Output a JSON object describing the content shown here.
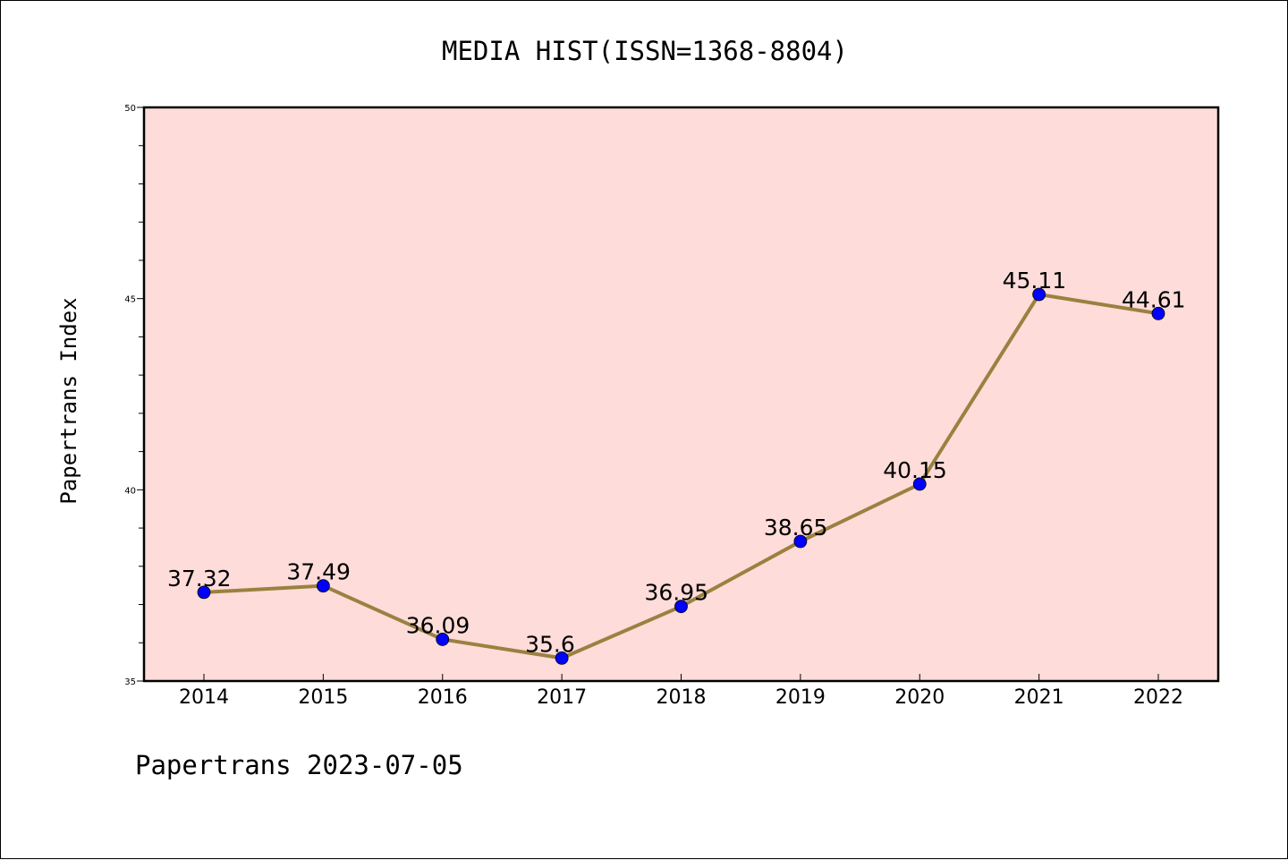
{
  "chart_data": {
    "type": "line",
    "title": "MEDIA HIST(ISSN=1368-8804)",
    "ylabel": "Papertrans Index",
    "xlabel": "",
    "categories": [
      "2014",
      "2015",
      "2016",
      "2017",
      "2018",
      "2019",
      "2020",
      "2021",
      "2022"
    ],
    "values": [
      37.32,
      37.49,
      36.09,
      35.6,
      36.95,
      38.65,
      40.15,
      45.11,
      44.61
    ],
    "data_labels": [
      "37.32",
      "37.49",
      "36.09",
      "35.6",
      "36.95",
      "38.65",
      "40.15",
      "45.11",
      "44.61"
    ],
    "ylim": [
      35,
      50
    ],
    "yticks": [
      "35",
      "40",
      "45",
      "50"
    ],
    "grid": false,
    "legend": "none",
    "colors": {
      "plot_background": "#fddcd9",
      "line": "#9a8140",
      "marker": "#0000ff"
    }
  },
  "footer": {
    "text": "Papertrans 2023-07-05"
  }
}
